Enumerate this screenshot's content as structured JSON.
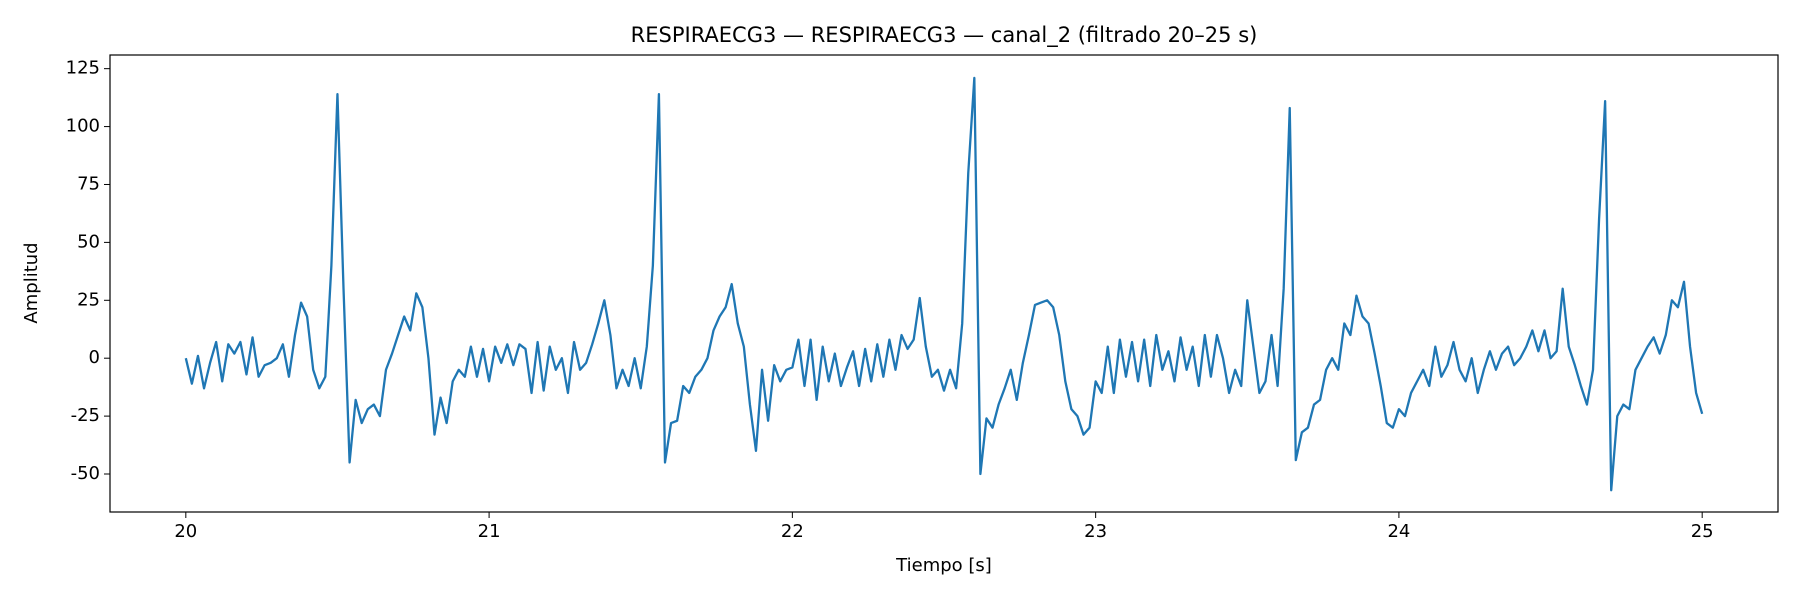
{
  "chart_data": {
    "type": "line",
    "title": "RESPIRAECG3 — RESPIRAECG3 — canal_2 (filtrado 20–25 s)",
    "x_label": "Tiempo [s]",
    "y_label": "Amplitud",
    "xlim": [
      19.75,
      25.25
    ],
    "ylim": [
      -66.4,
      130.9
    ],
    "xticks": [
      20,
      21,
      22,
      23,
      24,
      25
    ],
    "yticks": [
      -50,
      -25,
      0,
      25,
      50,
      75,
      100,
      125
    ],
    "grid": false,
    "x": [
      20,
      20.02,
      20.04,
      20.06,
      20.08,
      20.1,
      20.12,
      20.14,
      20.16,
      20.18,
      20.2,
      20.22,
      20.24,
      20.26,
      20.28,
      20.3,
      20.32,
      20.34,
      20.36,
      20.38,
      20.4,
      20.42,
      20.44,
      20.46,
      20.48,
      20.5,
      20.52,
      20.54,
      20.56,
      20.58,
      20.6,
      20.62,
      20.64,
      20.66,
      20.68,
      20.7,
      20.72,
      20.74,
      20.76,
      20.78,
      20.8,
      20.82,
      20.84,
      20.86,
      20.88,
      20.9,
      20.92,
      20.94,
      20.96,
      20.98,
      21,
      21.02,
      21.04,
      21.06,
      21.08,
      21.1,
      21.12,
      21.14,
      21.16,
      21.18,
      21.2,
      21.22,
      21.24,
      21.26,
      21.28,
      21.3,
      21.32,
      21.34,
      21.36,
      21.38,
      21.4,
      21.42,
      21.44,
      21.46,
      21.48,
      21.5,
      21.52,
      21.54,
      21.56,
      21.58,
      21.6,
      21.62,
      21.64,
      21.66,
      21.68,
      21.7,
      21.72,
      21.74,
      21.76,
      21.78,
      21.8,
      21.82,
      21.84,
      21.86,
      21.88,
      21.9,
      21.92,
      21.94,
      21.96,
      21.98,
      22,
      22.02,
      22.04,
      22.06,
      22.08,
      22.1,
      22.12,
      22.14,
      22.16,
      22.18,
      22.2,
      22.22,
      22.24,
      22.26,
      22.28,
      22.3,
      22.32,
      22.34,
      22.36,
      22.38,
      22.4,
      22.42,
      22.44,
      22.46,
      22.48,
      22.5,
      22.52,
      22.54,
      22.56,
      22.58,
      22.6,
      22.62,
      22.64,
      22.66,
      22.68,
      22.7,
      22.72,
      22.74,
      22.76,
      22.78,
      22.8,
      22.82,
      22.84,
      22.86,
      22.88,
      22.9,
      22.92,
      22.94,
      22.96,
      22.98,
      23,
      23.02,
      23.04,
      23.06,
      23.08,
      23.1,
      23.12,
      23.14,
      23.16,
      23.18,
      23.2,
      23.22,
      23.24,
      23.26,
      23.28,
      23.3,
      23.32,
      23.34,
      23.36,
      23.38,
      23.4,
      23.42,
      23.44,
      23.46,
      23.48,
      23.5,
      23.52,
      23.54,
      23.56,
      23.58,
      23.6,
      23.62,
      23.64,
      23.66,
      23.68,
      23.7,
      23.72,
      23.74,
      23.76,
      23.78,
      23.8,
      23.82,
      23.84,
      23.86,
      23.88,
      23.9,
      23.92,
      23.94,
      23.96,
      23.98,
      24,
      24.02,
      24.04,
      24.06,
      24.08,
      24.1,
      24.12,
      24.14,
      24.16,
      24.18,
      24.2,
      24.22,
      24.24,
      24.26,
      24.28,
      24.3,
      24.32,
      24.34,
      24.36,
      24.38,
      24.4,
      24.42,
      24.44,
      24.46,
      24.48,
      24.5,
      24.52,
      24.54,
      24.56,
      24.58,
      24.6,
      24.62,
      24.64,
      24.66,
      24.68,
      24.7,
      24.72,
      24.74,
      24.76,
      24.78,
      24.8,
      24.82,
      24.84,
      24.86,
      24.88,
      24.9,
      24.92,
      24.94,
      24.96,
      24.98,
      25
    ],
    "series": [
      {
        "color": "#1f77b4",
        "values": [
          0,
          -11,
          1,
          -13,
          -2,
          7,
          -10,
          6,
          2,
          7,
          -7,
          9,
          -8,
          -3,
          -2,
          0,
          6,
          -8,
          10,
          24,
          18,
          -5,
          -13,
          -8,
          40,
          114,
          30,
          -45,
          -18,
          -28,
          -22,
          -20,
          -25,
          -5,
          2,
          10,
          18,
          12,
          28,
          22,
          0,
          -33,
          -17,
          -28,
          -10,
          -5,
          -8,
          5,
          -8,
          4,
          -10,
          5,
          -2,
          6,
          -3,
          6,
          4,
          -15,
          7,
          -14,
          5,
          -5,
          0,
          -15,
          7,
          -5,
          -2,
          6,
          15,
          25,
          10,
          -13,
          -5,
          -12,
          0,
          -13,
          5,
          40,
          114,
          -45,
          -28,
          -27,
          -12,
          -15,
          -8,
          -5,
          0,
          12,
          18,
          22,
          32,
          15,
          5,
          -20,
          -40,
          -5,
          -27,
          -3,
          -10,
          -5,
          -4,
          8,
          -12,
          8,
          -18,
          5,
          -10,
          2,
          -12,
          -4,
          3,
          -12,
          4,
          -10,
          6,
          -8,
          8,
          -5,
          10,
          4,
          8,
          26,
          5,
          -8,
          -5,
          -14,
          -5,
          -13,
          15,
          80,
          121,
          -50,
          -26,
          -30,
          -20,
          -13,
          -5,
          -18,
          -2,
          10,
          23,
          24,
          25,
          22,
          10,
          -10,
          -22,
          -25,
          -33,
          -30,
          -10,
          -15,
          5,
          -15,
          8,
          -8,
          7,
          -10,
          8,
          -12,
          10,
          -5,
          3,
          -10,
          9,
          -5,
          5,
          -12,
          10,
          -8,
          10,
          0,
          -15,
          -5,
          -12,
          25,
          5,
          -15,
          -10,
          10,
          -12,
          30,
          108,
          -44,
          -32,
          -30,
          -20,
          -18,
          -5,
          0,
          -5,
          15,
          10,
          27,
          18,
          15,
          2,
          -12,
          -28,
          -30,
          -22,
          -25,
          -15,
          -10,
          -5,
          -12,
          5,
          -8,
          -3,
          7,
          -5,
          -10,
          0,
          -15,
          -5,
          3,
          -5,
          2,
          5,
          -3,
          0,
          5,
          12,
          3,
          12,
          0,
          3,
          30,
          5,
          -3,
          -12,
          -20,
          -5,
          60,
          111,
          -57,
          -25,
          -20,
          -22,
          -5,
          0,
          5,
          9,
          2,
          10,
          25,
          22,
          33,
          5,
          -15,
          -24
        ]
      }
    ]
  }
}
